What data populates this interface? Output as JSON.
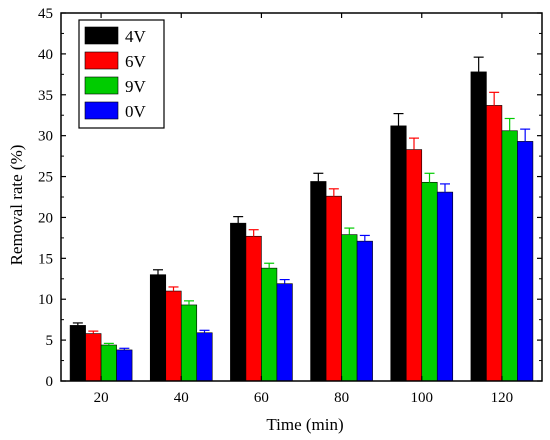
{
  "chart_data": {
    "type": "bar",
    "xlabel": "Time (min)",
    "ylabel": "Removal rate (%)",
    "categories": [
      "20",
      "40",
      "60",
      "80",
      "100",
      "120"
    ],
    "ylim": [
      0,
      45
    ],
    "yticks": [
      0,
      5,
      10,
      15,
      20,
      25,
      30,
      35,
      40,
      45
    ],
    "grid": false,
    "legend_position": "top-left",
    "series": [
      {
        "name": "4V",
        "color": "#000000",
        "values": [
          6.8,
          13.0,
          19.3,
          24.4,
          31.2,
          37.8
        ],
        "errors": [
          0.3,
          0.6,
          0.8,
          1.0,
          1.5,
          1.8
        ]
      },
      {
        "name": "6V",
        "color": "#ff0000",
        "values": [
          5.8,
          11.0,
          17.7,
          22.6,
          28.3,
          33.7
        ],
        "errors": [
          0.3,
          0.5,
          0.8,
          0.9,
          1.4,
          1.6
        ]
      },
      {
        "name": "9V",
        "color": "#00cc00",
        "values": [
          4.4,
          9.3,
          13.8,
          17.9,
          24.3,
          30.6
        ],
        "errors": [
          0.2,
          0.5,
          0.6,
          0.8,
          1.1,
          1.5
        ]
      },
      {
        "name": "0V",
        "color": "#0000ff",
        "values": [
          3.8,
          5.9,
          11.9,
          17.1,
          23.1,
          29.3
        ],
        "errors": [
          0.2,
          0.3,
          0.5,
          0.7,
          1.0,
          1.5
        ]
      }
    ]
  }
}
